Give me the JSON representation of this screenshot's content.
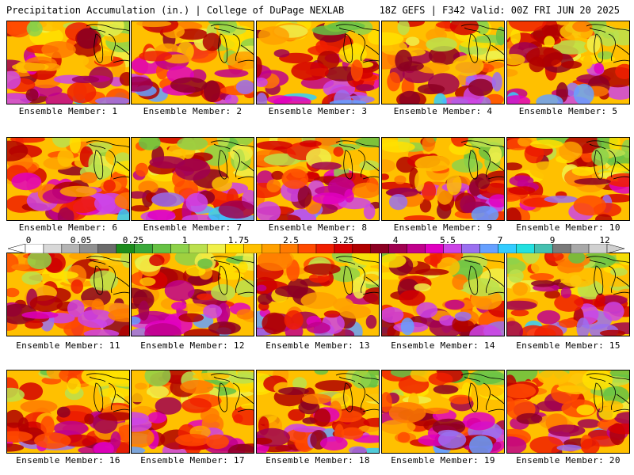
{
  "header": {
    "title_left": "Precipitation Accumulation (in.) | College of DuPage NEXLAB",
    "title_right": "18Z GEFS | F342 Valid: 00Z FRI JUN 20 2025"
  },
  "colorbar": {
    "labels": [
      "0",
      "0.05",
      "0.25",
      "1",
      "1.75",
      "2.5",
      "3.25",
      "4",
      "5.5",
      "7",
      "9",
      "12"
    ],
    "colors": [
      "#ffffff",
      "#d8d8d8",
      "#b4b4b4",
      "#909090",
      "#6b6b6b",
      "#1c8c1c",
      "#3aa83a",
      "#66c244",
      "#8ed24a",
      "#bbe04e",
      "#f0f04a",
      "#ffe000",
      "#ffc000",
      "#ffa000",
      "#ff7a00",
      "#ff4a00",
      "#f01e00",
      "#d40000",
      "#b00000",
      "#8c0022",
      "#a00050",
      "#c0008c",
      "#e000c0",
      "#cc44e6",
      "#9a70f0",
      "#66a0ff",
      "#33ccff",
      "#22e0e0",
      "#44c0b0",
      "#7a7a7a",
      "#a8a8a8",
      "#d0d0d0"
    ]
  },
  "panels": [
    {
      "label": "Ensemble Member: 1"
    },
    {
      "label": "Ensemble Member: 2"
    },
    {
      "label": "Ensemble Member: 3"
    },
    {
      "label": "Ensemble Member: 4"
    },
    {
      "label": "Ensemble Member: 5"
    },
    {
      "label": "Ensemble Member: 6"
    },
    {
      "label": "Ensemble Member: 7"
    },
    {
      "label": "Ensemble Member: 8"
    },
    {
      "label": "Ensemble Member: 9"
    },
    {
      "label": "Ensemble Member: 10"
    },
    {
      "label": "Ensemble Member: 11"
    },
    {
      "label": "Ensemble Member: 12"
    },
    {
      "label": "Ensemble Member: 13"
    },
    {
      "label": "Ensemble Member: 14"
    },
    {
      "label": "Ensemble Member: 15"
    },
    {
      "label": "Ensemble Member: 16"
    },
    {
      "label": "Ensemble Member: 17"
    },
    {
      "label": "Ensemble Member: 18"
    },
    {
      "label": "Ensemble Member: 19"
    },
    {
      "label": "Ensemble Member: 20"
    }
  ]
}
